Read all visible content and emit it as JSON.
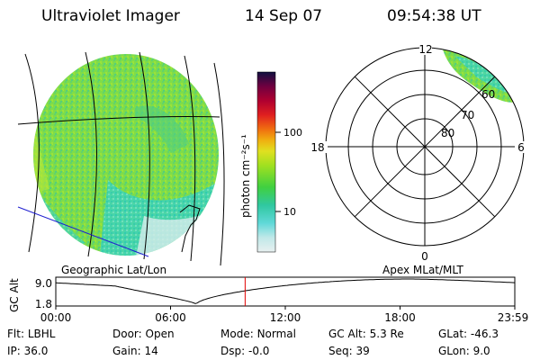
{
  "header": {
    "instrument": "Ultraviolet Imager",
    "date": "14 Sep 07",
    "time": "09:54:38 UT"
  },
  "colorbar": {
    "label": "photon cm⁻²s⁻¹",
    "ticks": [
      "100",
      "10"
    ]
  },
  "polar": {
    "label": "Apex MLat/MLT",
    "mlt_labels": {
      "top": "12",
      "left": "18",
      "right": "6",
      "bottom": "0"
    },
    "lat_labels": [
      "60",
      "70",
      "80"
    ]
  },
  "map": {
    "label": "Geographic Lat/Lon"
  },
  "altitude": {
    "axis_label": "GC Alt",
    "y_ticks": [
      "9.0",
      "1.8"
    ],
    "x_ticks": [
      "00:00",
      "06:00",
      "12:00",
      "18:00",
      "23:59"
    ],
    "current_time_hours": 9.9
  },
  "info": {
    "filter": {
      "label": "Flt:",
      "value": "LBHL"
    },
    "ip": {
      "label": "IP:",
      "value": "36.0"
    },
    "door": {
      "label": "Door:",
      "value": "Open"
    },
    "gain": {
      "label": "Gain:",
      "value": "14"
    },
    "mode": {
      "label": "Mode:",
      "value": "Normal"
    },
    "dsp": {
      "label": "Dsp:",
      "value": "-0.0"
    },
    "gcalt": {
      "label": "GC Alt:",
      "value": "5.3 Re"
    },
    "seq": {
      "label": "Seq:",
      "value": "39"
    },
    "glat": {
      "label": "GLat:",
      "value": "-46.3"
    },
    "glon": {
      "label": "GLon:",
      "value": "9.0"
    }
  },
  "colors": {
    "trace": "#000000",
    "time_marker": "#e00000",
    "map_lines": "#000000",
    "blue_line": "#2020d0"
  }
}
